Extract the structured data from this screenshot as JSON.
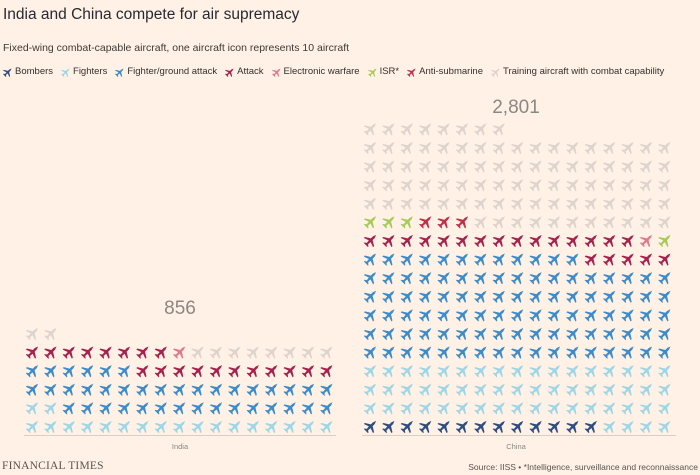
{
  "header": {
    "title": "India and China compete for air supremacy",
    "subtitle": "Fixed-wing combat-capable aircraft, one aircraft icon represents 10 aircraft"
  },
  "legend": [
    {
      "label": "Bombers",
      "color": "#2f4d7e"
    },
    {
      "label": "Fighters",
      "color": "#9fd6e6"
    },
    {
      "label": "Fighter/ground attack",
      "color": "#3d8cc9"
    },
    {
      "label": "Attack",
      "color": "#a3234e"
    },
    {
      "label": "Electronic warfare",
      "color": "#e07a8e"
    },
    {
      "label": "ISR*",
      "color": "#a5cc5b"
    },
    {
      "label": "Anti-submarine",
      "color": "#c0304a"
    },
    {
      "label": "Training aircraft with combat capability",
      "color": "#dcd4cd"
    }
  ],
  "chart_data": {
    "type": "pictogram",
    "unit": "one aircraft icon represents 10 aircraft",
    "icon_name": "plane-icon",
    "categories": [
      "India",
      "China"
    ],
    "totals": [
      856,
      2801
    ],
    "total_labels": [
      "856",
      "2,801"
    ],
    "series": [
      {
        "name": "Bombers",
        "color": "#2f4d7e",
        "icons": [
          0,
          13
        ]
      },
      {
        "name": "Fighters",
        "color": "#9fd6e6",
        "icons": [
          19,
          55
        ]
      },
      {
        "name": "Fighter/ground attack",
        "color": "#3d8cc9",
        "icons": [
          38,
          97
        ]
      },
      {
        "name": "Attack",
        "color": "#a3234e",
        "icons": [
          19,
          20
        ]
      },
      {
        "name": "Electronic warfare",
        "color": "#e07a8e",
        "icons": [
          1,
          1
        ]
      },
      {
        "name": "ISR*",
        "color": "#a5cc5b",
        "icons": [
          0,
          4
        ]
      },
      {
        "name": "Anti-submarine",
        "color": "#c0304a",
        "icons": [
          0,
          3
        ]
      },
      {
        "name": "Training aircraft with combat capability",
        "color": "#dcd4cd",
        "icons": [
          10,
          87
        ]
      }
    ]
  },
  "footer": {
    "logo": "FINANCIAL TIMES",
    "source": "Source: IISS • *Intelligence, surveillance and reconnaissance"
  }
}
